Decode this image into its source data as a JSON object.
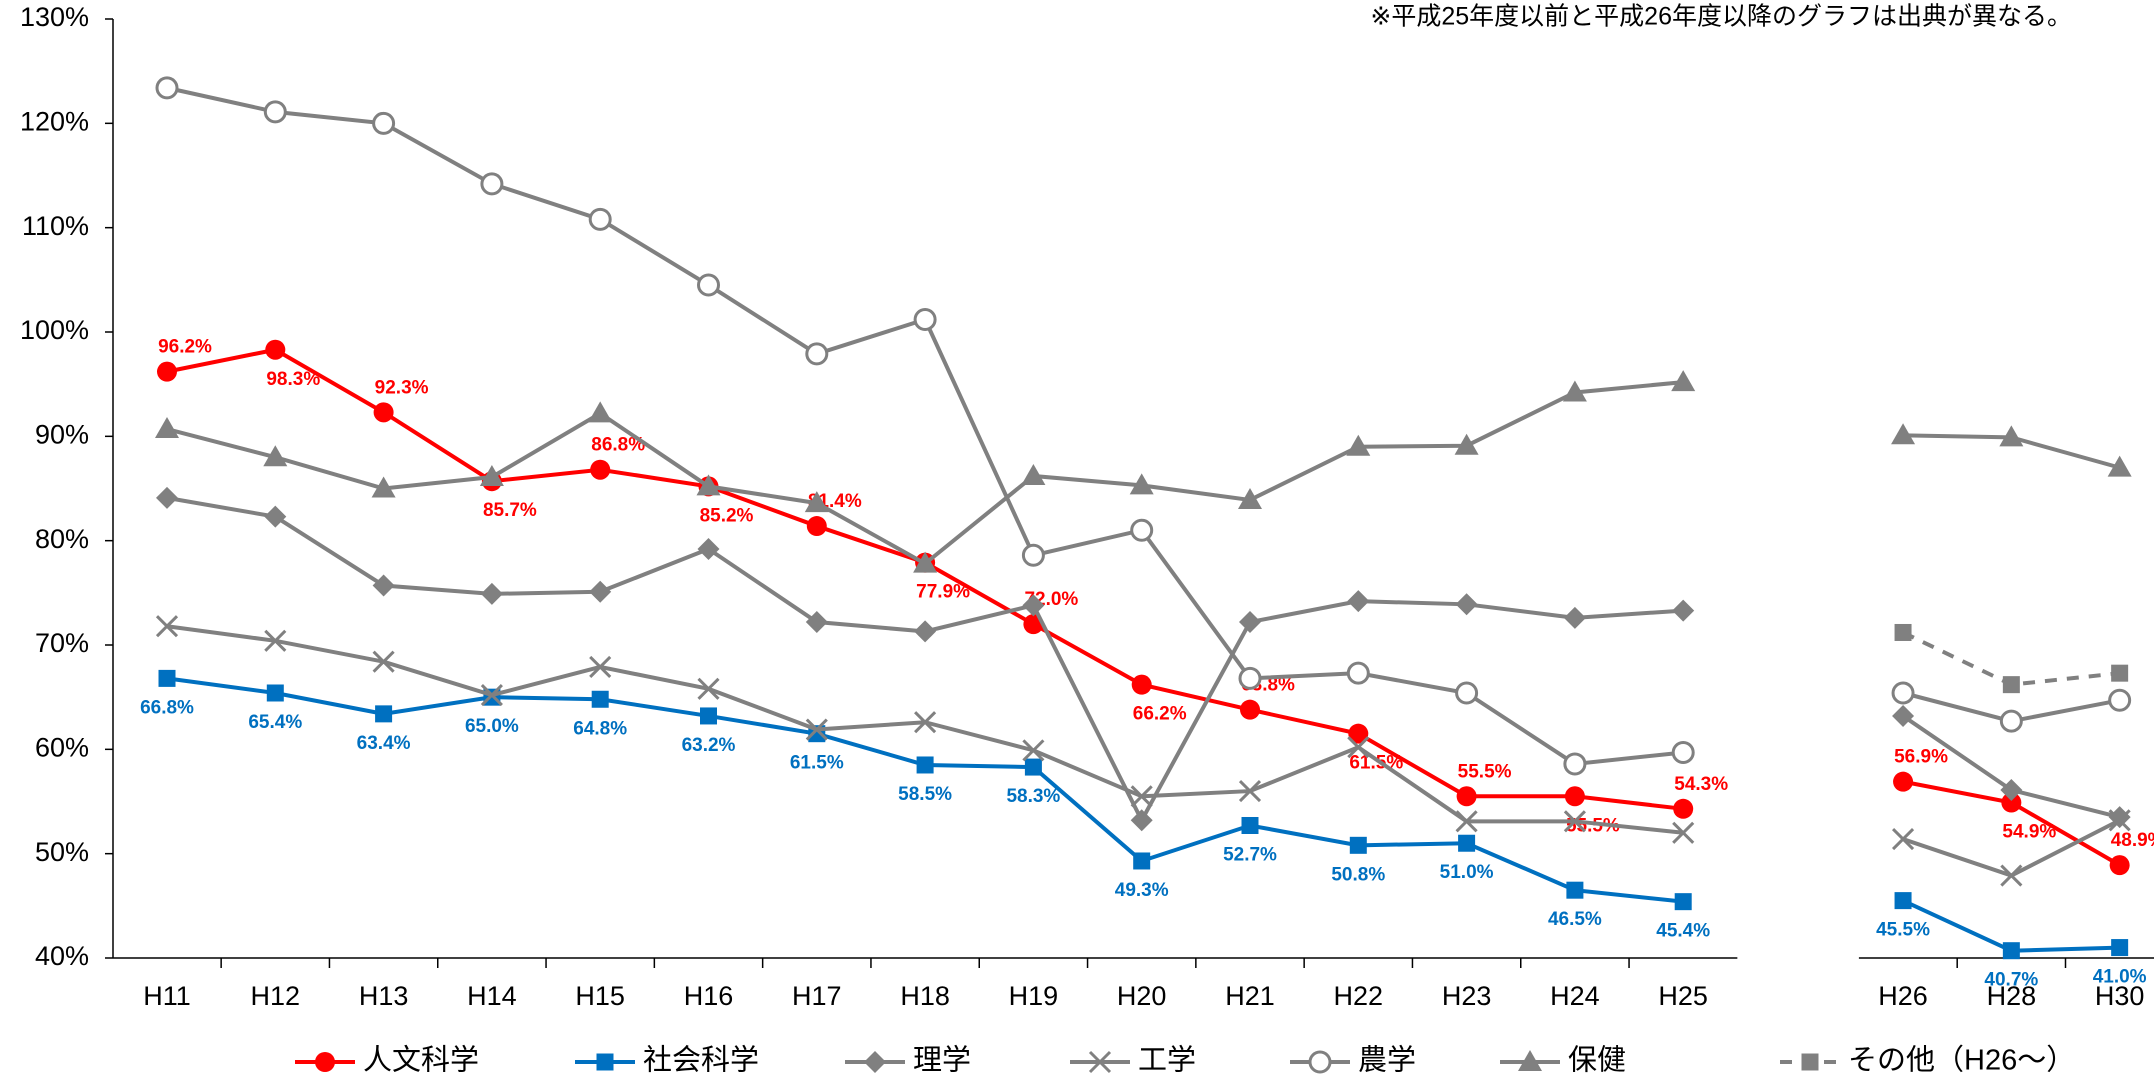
{
  "chart_data": {
    "type": "line",
    "note": "※平成25年度以前と平成26年度以降のグラフは出典が異なる。",
    "categories": [
      "H11",
      "H12",
      "H13",
      "H14",
      "H15",
      "H16",
      "H17",
      "H18",
      "H19",
      "H20",
      "H21",
      "H22",
      "H23",
      "H24",
      "H25",
      null,
      "H26",
      "H28",
      "H30"
    ],
    "ylim": [
      40,
      130
    ],
    "yticks": [
      {
        "value": 40,
        "label": "40%"
      },
      {
        "value": 50,
        "label": "50%"
      },
      {
        "value": 60,
        "label": "60%"
      },
      {
        "value": 70,
        "label": "70%"
      },
      {
        "value": 80,
        "label": "80%"
      },
      {
        "value": 90,
        "label": "90%"
      },
      {
        "value": 100,
        "label": "100%"
      },
      {
        "value": 110,
        "label": "110%"
      },
      {
        "value": 120,
        "label": "120%"
      },
      {
        "value": 130,
        "label": "130%"
      }
    ],
    "grid": false,
    "legend": "bottom",
    "series": [
      {
        "name": "人文科学",
        "color": "#ff0000",
        "marker": "circle",
        "values": [
          96.2,
          98.3,
          92.3,
          85.7,
          86.8,
          85.2,
          81.4,
          77.9,
          72.0,
          66.2,
          63.8,
          61.5,
          55.5,
          55.5,
          54.3,
          null,
          56.9,
          54.9,
          48.9
        ],
        "value_labels": [
          "96.2%",
          "98.3%",
          "92.3%",
          "85.7%",
          "86.8%",
          "85.2%",
          "81.4%",
          "77.9%",
          "72.0%",
          "66.2%",
          "63.8%",
          "61.5%",
          "55.5%",
          "55.5%",
          "54.3%",
          null,
          "56.9%",
          "54.9%",
          "48.9%"
        ]
      },
      {
        "name": "社会科学",
        "color": "#0070c0",
        "marker": "square",
        "values": [
          66.8,
          65.4,
          63.4,
          65.0,
          64.8,
          63.2,
          61.5,
          58.5,
          58.3,
          49.3,
          52.7,
          50.8,
          51.0,
          46.5,
          45.4,
          null,
          45.5,
          40.7,
          41.0
        ],
        "value_labels": [
          "66.8%",
          "65.4%",
          "63.4%",
          "65.0%",
          "64.8%",
          "63.2%",
          "61.5%",
          "58.5%",
          "58.3%",
          "49.3%",
          "52.7%",
          "50.8%",
          "51.0%",
          "46.5%",
          "45.4%",
          null,
          "45.5%",
          "40.7%",
          "41.0%"
        ]
      },
      {
        "name": "理学",
        "color": "#808080",
        "marker": "diamond",
        "values": [
          84.1,
          82.3,
          75.7,
          74.9,
          75.1,
          79.2,
          72.2,
          71.3,
          73.8,
          53.2,
          72.2,
          74.2,
          73.9,
          72.6,
          73.3,
          null,
          63.2,
          56.1,
          53.5
        ]
      },
      {
        "name": "工学",
        "color": "#808080",
        "marker": "x",
        "values": [
          71.8,
          70.4,
          68.4,
          65.2,
          67.9,
          65.8,
          61.9,
          62.6,
          59.9,
          55.5,
          56.0,
          60.2,
          53.1,
          53.1,
          52.0,
          null,
          51.4,
          47.9,
          53.2
        ]
      },
      {
        "name": "農学",
        "color": "#808080",
        "marker": "circle-open",
        "values": [
          123.4,
          121.1,
          120.0,
          114.2,
          110.8,
          104.5,
          97.9,
          101.2,
          78.6,
          81.0,
          66.8,
          67.3,
          65.4,
          58.6,
          59.7,
          null,
          65.4,
          62.7,
          64.7
        ]
      },
      {
        "name": "保健",
        "color": "#808080",
        "marker": "triangle",
        "values": [
          90.7,
          88.0,
          85.0,
          86.1,
          92.2,
          85.2,
          83.6,
          77.8,
          86.2,
          85.3,
          83.9,
          89.0,
          89.1,
          94.2,
          95.2,
          null,
          90.1,
          89.9,
          87.0
        ]
      },
      {
        "name": "その他（H26～）",
        "color": "#808080",
        "marker": "square",
        "dash": true,
        "values": [
          null,
          null,
          null,
          null,
          null,
          null,
          null,
          null,
          null,
          null,
          null,
          null,
          null,
          null,
          null,
          null,
          71.2,
          66.2,
          67.3
        ]
      }
    ]
  }
}
